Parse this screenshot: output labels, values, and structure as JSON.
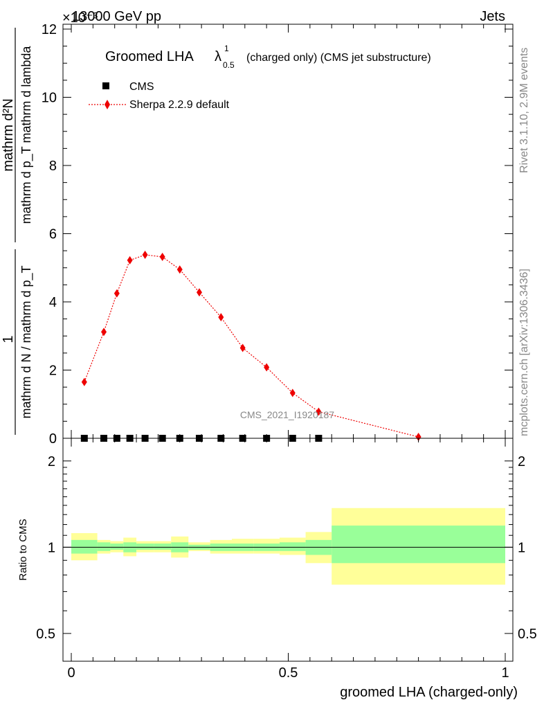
{
  "header": {
    "left": "13000 GeV pp",
    "right": "Jets",
    "exponent": "×10⁻³"
  },
  "chart_data": [
    {
      "type": "scatter",
      "title": "Groomed LHA",
      "title_symbol": "λ",
      "title_sup": "1",
      "title_sub": "0.5",
      "title_suffix": "(charged only) (CMS jet substructure)",
      "ylabel_numerator": "mathrm d²N",
      "ylabel_denominator": "mathrm d p_T mathrm d lambda",
      "ylabel_prefix": "1",
      "ylabel_prefix_denominator": "mathrm d N / mathrm d p_T",
      "ylim": [
        0,
        12
      ],
      "y_scale_factor": "1e-3",
      "yticks": [
        "0",
        "2",
        "4",
        "6",
        "8",
        "10",
        "12"
      ],
      "xlim": [
        0,
        1
      ],
      "legend_position": "top-left",
      "series": [
        {
          "name": "CMS",
          "marker": "square",
          "color": "#000000",
          "x": [
            0.03,
            0.075,
            0.105,
            0.135,
            0.17,
            0.21,
            0.25,
            0.295,
            0.345,
            0.395,
            0.45,
            0.51,
            0.57
          ],
          "y": [
            0.0,
            0.0,
            0.0,
            0.0,
            0.0,
            0.0,
            0.0,
            0.0,
            0.0,
            0.0,
            0.0,
            0.0,
            0.0
          ]
        },
        {
          "name": "Sherpa 2.2.9 default",
          "marker": "diamond",
          "color": "#ee0000",
          "line": "dotted",
          "x": [
            0.03,
            0.075,
            0.105,
            0.135,
            0.17,
            0.21,
            0.25,
            0.295,
            0.345,
            0.395,
            0.45,
            0.51,
            0.57,
            0.8
          ],
          "y": [
            1.65,
            3.12,
            4.25,
            5.22,
            5.38,
            5.32,
            4.95,
            4.28,
            3.55,
            2.65,
            2.08,
            1.33,
            0.78,
            0.04
          ]
        }
      ],
      "watermark": "CMS_2021_I1920187"
    },
    {
      "type": "area",
      "ylabel": "Ratio to CMS",
      "xlabel": "groomed LHA (charged-only)",
      "ylim": [
        0.4,
        2.4
      ],
      "yscale": "log",
      "yticks": [
        "0.5",
        "1",
        "2"
      ],
      "xticks": [
        "0",
        "0.5",
        "1"
      ],
      "xlim": [
        0,
        1
      ],
      "bins": [
        {
          "lo": 0.0,
          "hi": 0.06,
          "green": [
            0.95,
            1.06
          ],
          "yellow": [
            0.9,
            1.12
          ]
        },
        {
          "lo": 0.06,
          "hi": 0.09,
          "green": [
            0.97,
            1.04
          ],
          "yellow": [
            0.95,
            1.06
          ]
        },
        {
          "lo": 0.09,
          "hi": 0.12,
          "green": [
            0.98,
            1.03
          ],
          "yellow": [
            0.96,
            1.05
          ]
        },
        {
          "lo": 0.12,
          "hi": 0.15,
          "green": [
            0.96,
            1.04
          ],
          "yellow": [
            0.93,
            1.08
          ]
        },
        {
          "lo": 0.15,
          "hi": 0.19,
          "green": [
            0.98,
            1.03
          ],
          "yellow": [
            0.96,
            1.05
          ]
        },
        {
          "lo": 0.19,
          "hi": 0.23,
          "green": [
            0.98,
            1.03
          ],
          "yellow": [
            0.96,
            1.05
          ]
        },
        {
          "lo": 0.23,
          "hi": 0.27,
          "green": [
            0.96,
            1.04
          ],
          "yellow": [
            0.92,
            1.09
          ]
        },
        {
          "lo": 0.27,
          "hi": 0.32,
          "green": [
            0.98,
            1.02
          ],
          "yellow": [
            0.97,
            1.04
          ]
        },
        {
          "lo": 0.32,
          "hi": 0.37,
          "green": [
            0.97,
            1.03
          ],
          "yellow": [
            0.95,
            1.06
          ]
        },
        {
          "lo": 0.37,
          "hi": 0.42,
          "green": [
            0.97,
            1.03
          ],
          "yellow": [
            0.95,
            1.07
          ]
        },
        {
          "lo": 0.42,
          "hi": 0.48,
          "green": [
            0.97,
            1.03
          ],
          "yellow": [
            0.95,
            1.07
          ]
        },
        {
          "lo": 0.48,
          "hi": 0.54,
          "green": [
            0.97,
            1.04
          ],
          "yellow": [
            0.94,
            1.08
          ]
        },
        {
          "lo": 0.54,
          "hi": 0.6,
          "green": [
            0.94,
            1.06
          ],
          "yellow": [
            0.88,
            1.13
          ]
        },
        {
          "lo": 0.6,
          "hi": 1.0,
          "green": [
            0.88,
            1.19
          ],
          "yellow": [
            0.74,
            1.37
          ]
        }
      ],
      "ratio_line": 1,
      "band_colors": {
        "green": "#99ff99",
        "yellow": "#ffff99"
      }
    }
  ],
  "side_labels": {
    "rivet": "Rivet 3.1.10,  2.9M events",
    "mcplots": "mcplots.cern.ch [arXiv:1306.3436]"
  }
}
